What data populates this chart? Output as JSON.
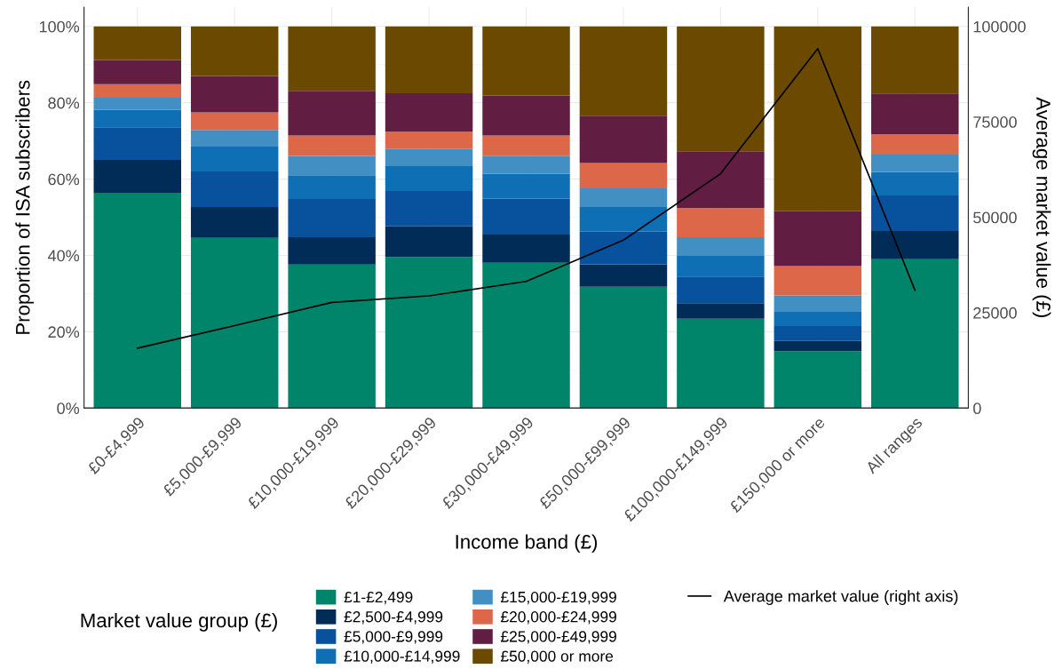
{
  "chart_data": {
    "type": "bar",
    "stacked": true,
    "xlabel": "Income band (£)",
    "ylabel": "Proportion of ISA subscribers",
    "y2label": "Average market value (£)",
    "legend_title": "Market value group (£)",
    "categories": [
      "£0-£4,999",
      "£5,000-£9,999",
      "£10,000-£19,999",
      "£20,000-£29,999",
      "£30,000-£49,999",
      "£50,000-£99,999",
      "£100,000-£149,999",
      "£150,000 or more",
      "All ranges"
    ],
    "series": [
      {
        "name": "£1-£2,499",
        "color": "#00856a",
        "values": [
          56.4,
          44.6,
          37.6,
          39.6,
          38.1,
          31.8,
          23.4,
          14.9,
          39.0
        ]
      },
      {
        "name": "£2,500-£4,999",
        "color": "#002c57",
        "values": [
          8.6,
          8.1,
          7.2,
          8.0,
          7.4,
          5.9,
          4.1,
          2.7,
          7.4
        ]
      },
      {
        "name": "£5,000-£9,999",
        "color": "#08519c",
        "values": [
          8.6,
          9.3,
          10.0,
          9.3,
          9.4,
          8.5,
          7.0,
          3.9,
          9.3
        ]
      },
      {
        "name": "£10,000-£14,999",
        "color": "#0f6fb4",
        "values": [
          4.5,
          6.5,
          6.2,
          6.5,
          6.5,
          6.5,
          5.4,
          3.7,
          6.2
        ]
      },
      {
        "name": "£15,000-£19,999",
        "color": "#4290c3",
        "values": [
          3.2,
          4.4,
          5.1,
          4.5,
          4.6,
          4.9,
          4.9,
          4.3,
          4.5
        ]
      },
      {
        "name": "£20,000-£24,999",
        "color": "#dd6849",
        "values": [
          3.6,
          4.6,
          5.3,
          4.5,
          5.4,
          6.6,
          7.6,
          7.7,
          5.3
        ]
      },
      {
        "name": "£25,000-£49,999",
        "color": "#611d42",
        "values": [
          6.3,
          9.5,
          11.7,
          10.1,
          10.5,
          12.4,
          14.9,
          14.4,
          10.7
        ]
      },
      {
        "name": "£50,000 or more",
        "color": "#6b4a00",
        "values": [
          8.8,
          13.0,
          16.9,
          17.5,
          18.1,
          23.4,
          32.7,
          48.4,
          17.6
        ]
      },
      {
        "name": "Average market value (right axis)",
        "type": "line",
        "axis": "y2",
        "color": "#000000",
        "values": [
          15700,
          21600,
          27700,
          29400,
          33200,
          44000,
          61400,
          94200,
          30900
        ]
      }
    ],
    "ylim": [
      0,
      105
    ],
    "yticks": [
      {
        "value": 0,
        "label": "0%"
      },
      {
        "value": 20,
        "label": "20%"
      },
      {
        "value": 40,
        "label": "40%"
      },
      {
        "value": 60,
        "label": "60%"
      },
      {
        "value": 80,
        "label": "80%"
      },
      {
        "value": 100,
        "label": "100%"
      }
    ],
    "y2lim": [
      0,
      105000
    ],
    "y2ticks": [
      0,
      25000,
      50000,
      75000,
      100000
    ],
    "grid": true,
    "legend": "bottom"
  }
}
